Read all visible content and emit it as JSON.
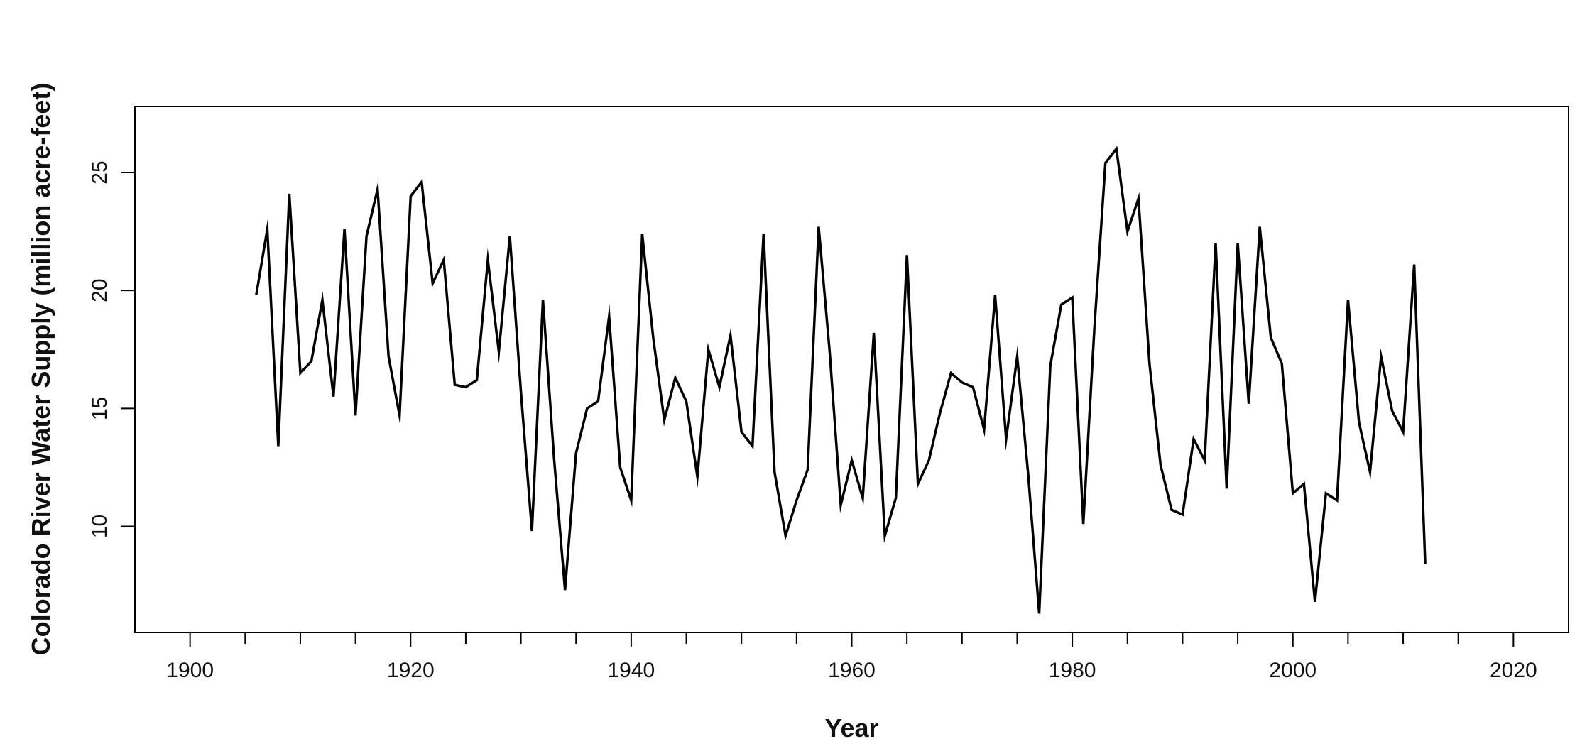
{
  "chart_data": {
    "type": "line",
    "title": "",
    "xlabel": "Year",
    "ylabel": "Colorado River Water Supply (million acre-feet)",
    "xlim": [
      1895,
      2025
    ],
    "ylim": [
      5.5,
      27.8
    ],
    "xticks": [
      1900,
      1920,
      1940,
      1960,
      1980,
      2000,
      2020
    ],
    "xminor_ticks": [
      1905,
      1910,
      1915,
      1925,
      1930,
      1935,
      1945,
      1950,
      1955,
      1965,
      1970,
      1975,
      1985,
      1990,
      1995,
      2005,
      2010,
      2015
    ],
    "yticks": [
      10,
      15,
      20,
      25
    ],
    "grid": false,
    "legend": "none",
    "line_color": "#000000",
    "series": [
      {
        "x": [
          1906,
          1907,
          1908,
          1909,
          1910,
          1911,
          1912,
          1913,
          1914,
          1915,
          1916,
          1917,
          1918,
          1919,
          1920,
          1921,
          1922,
          1923,
          1924,
          1925,
          1926,
          1927,
          1928,
          1929,
          1930,
          1931,
          1932,
          1933,
          1934,
          1935,
          1936,
          1937,
          1938,
          1939,
          1940,
          1941,
          1942,
          1943,
          1944,
          1945,
          1946,
          1947,
          1948,
          1949,
          1950,
          1951,
          1952,
          1953,
          1954,
          1955,
          1956,
          1957,
          1958,
          1959,
          1960,
          1961,
          1962,
          1963,
          1964,
          1965,
          1966,
          1967,
          1968,
          1969,
          1970,
          1971,
          1972,
          1973,
          1974,
          1975,
          1976,
          1977,
          1978,
          1979,
          1980,
          1981,
          1982,
          1983,
          1984,
          1985,
          1986,
          1987,
          1988,
          1989,
          1990,
          1991,
          1992,
          1993,
          1994,
          1995,
          1996,
          1997,
          1998,
          1999,
          2000,
          2001,
          2002,
          2003,
          2004,
          2005,
          2006,
          2007,
          2008,
          2009,
          2010,
          2011,
          2012
        ],
        "y": [
          19.8,
          22.6,
          13.4,
          24.1,
          16.5,
          17.0,
          19.6,
          15.5,
          22.6,
          14.7,
          22.3,
          24.3,
          17.2,
          14.7,
          24.0,
          24.6,
          20.3,
          21.3,
          16.0,
          15.9,
          16.2,
          21.3,
          17.4,
          22.3,
          15.7,
          9.8,
          19.6,
          12.9,
          7.3,
          13.1,
          15.0,
          15.3,
          18.9,
          12.5,
          11.1,
          22.4,
          18.0,
          14.5,
          16.3,
          15.3,
          12.1,
          17.5,
          15.9,
          18.1,
          14.0,
          13.4,
          22.4,
          12.3,
          9.6,
          11.1,
          12.4,
          22.7,
          17.4,
          10.9,
          12.8,
          11.2,
          18.2,
          9.6,
          11.2,
          21.5,
          11.8,
          12.8,
          14.8,
          16.5,
          16.1,
          15.9,
          14.1,
          19.8,
          13.7,
          17.2,
          12.2,
          6.3,
          16.8,
          19.4,
          19.7,
          10.1,
          18.4,
          25.4,
          26.0,
          22.5,
          23.9,
          16.9,
          12.6,
          10.7,
          10.5,
          13.7,
          12.8,
          22.0,
          11.6,
          22.0,
          15.2,
          22.7,
          18.0,
          16.9,
          11.4,
          11.8,
          6.8,
          11.4,
          11.1,
          19.6,
          14.4,
          12.3,
          17.2,
          14.9,
          14.0,
          21.1,
          8.4
        ]
      }
    ]
  }
}
